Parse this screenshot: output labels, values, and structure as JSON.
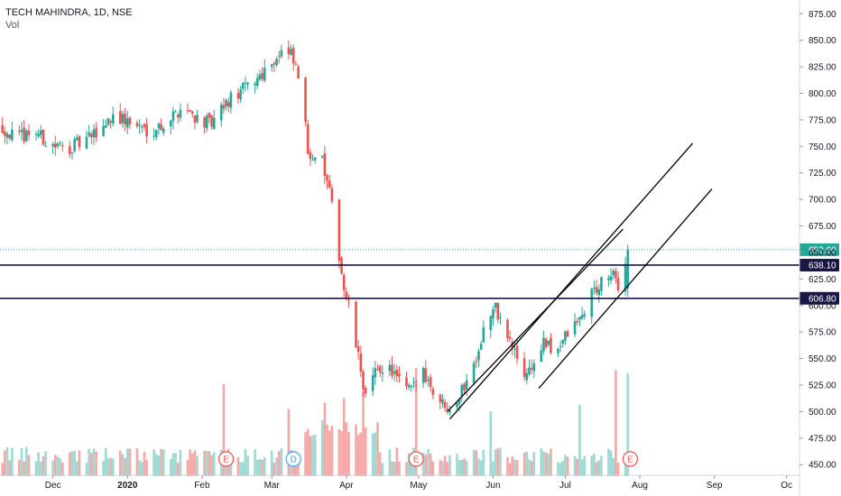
{
  "header": {
    "title": "TECH MAHINDRA, 1D, NSE",
    "volume_label": "Vol"
  },
  "colors": {
    "up": "#26a69a",
    "down": "#ef5350",
    "up_volume": "#9ed9d3",
    "down_volume": "#f5a8a6",
    "level_line": "#1a1646",
    "trend_line": "#000000",
    "last_price": "#26a69a"
  },
  "chart_data": {
    "type": "candlestick",
    "y_axis": {
      "ticks": [
        875,
        850,
        825,
        800,
        775,
        750,
        725,
        700,
        675,
        650,
        625,
        600,
        575,
        550,
        525,
        500,
        475,
        450
      ],
      "tick_labels": [
        "875.00",
        "850.00",
        "825.00",
        "800.00",
        "775.00",
        "750.00",
        "725.00",
        "700.00",
        "675.00",
        "650.00",
        "625.00",
        "600.00",
        "575.00",
        "550.00",
        "525.00",
        "500.00",
        "475.00",
        "450.00"
      ],
      "range": [
        440,
        888
      ]
    },
    "x_axis": {
      "labels": [
        "Dec",
        "2020",
        "Feb",
        "Mar",
        "Apr",
        "May",
        "Jun",
        "Jul",
        "Aug",
        "Sep",
        "Oc"
      ],
      "label_days": [
        0,
        31,
        62,
        91,
        122,
        152,
        183,
        213,
        244,
        275,
        305
      ],
      "range_days": [
        -22,
        310
      ]
    },
    "last_price": {
      "value": 652.6,
      "label": "652.60"
    },
    "levels": [
      {
        "value": 638.1,
        "label": "638.10"
      },
      {
        "value": 606.8,
        "label": "606.80"
      }
    ],
    "trend_lines": [
      {
        "from": {
          "day": 165,
          "price": 493
        },
        "to": {
          "day": 266,
          "price": 753
        }
      },
      {
        "from": {
          "day": 202,
          "price": 522
        },
        "to": {
          "day": 274,
          "price": 710
        }
      },
      {
        "from": {
          "day": 164,
          "price": 500
        },
        "to": {
          "day": 237,
          "price": 672
        }
      }
    ],
    "event_markers": [
      {
        "label": "E",
        "day": 72,
        "kind": "earnings"
      },
      {
        "label": "D",
        "day": 100,
        "kind": "dividend"
      },
      {
        "label": "E",
        "day": 151,
        "kind": "earnings"
      },
      {
        "label": "E",
        "day": 240,
        "kind": "earnings"
      }
    ],
    "anchors": [
      {
        "day": -22,
        "price": 770
      },
      {
        "day": -15,
        "price": 757
      },
      {
        "day": -8,
        "price": 766
      },
      {
        "day": -2,
        "price": 752
      },
      {
        "day": 5,
        "price": 748
      },
      {
        "day": 12,
        "price": 753
      },
      {
        "day": 18,
        "price": 762
      },
      {
        "day": 25,
        "price": 780
      },
      {
        "day": 32,
        "price": 772
      },
      {
        "day": 40,
        "price": 765
      },
      {
        "day": 47,
        "price": 772
      },
      {
        "day": 54,
        "price": 788
      },
      {
        "day": 61,
        "price": 775
      },
      {
        "day": 66,
        "price": 770
      },
      {
        "day": 72,
        "price": 790
      },
      {
        "day": 78,
        "price": 802
      },
      {
        "day": 84,
        "price": 812
      },
      {
        "day": 90,
        "price": 828
      },
      {
        "day": 95,
        "price": 838
      },
      {
        "day": 99,
        "price": 835
      },
      {
        "day": 103,
        "price": 810
      },
      {
        "day": 106,
        "price": 745
      },
      {
        "day": 109,
        "price": 742
      },
      {
        "day": 112,
        "price": 735
      },
      {
        "day": 115,
        "price": 705
      },
      {
        "day": 118,
        "price": 665
      },
      {
        "day": 121,
        "price": 615
      },
      {
        "day": 124,
        "price": 590
      },
      {
        "day": 127,
        "price": 550
      },
      {
        "day": 130,
        "price": 515
      },
      {
        "day": 134,
        "price": 535
      },
      {
        "day": 138,
        "price": 545
      },
      {
        "day": 142,
        "price": 535
      },
      {
        "day": 146,
        "price": 520
      },
      {
        "day": 150,
        "price": 522
      },
      {
        "day": 154,
        "price": 540
      },
      {
        "day": 158,
        "price": 520
      },
      {
        "day": 162,
        "price": 508
      },
      {
        "day": 166,
        "price": 505
      },
      {
        "day": 170,
        "price": 520
      },
      {
        "day": 175,
        "price": 545
      },
      {
        "day": 180,
        "price": 585
      },
      {
        "day": 184,
        "price": 597
      },
      {
        "day": 188,
        "price": 575
      },
      {
        "day": 192,
        "price": 555
      },
      {
        "day": 196,
        "price": 535
      },
      {
        "day": 200,
        "price": 545
      },
      {
        "day": 204,
        "price": 565
      },
      {
        "day": 208,
        "price": 555
      },
      {
        "day": 212,
        "price": 568
      },
      {
        "day": 216,
        "price": 578
      },
      {
        "day": 220,
        "price": 590
      },
      {
        "day": 224,
        "price": 612
      },
      {
        "day": 228,
        "price": 620
      },
      {
        "day": 232,
        "price": 630
      },
      {
        "day": 236,
        "price": 615
      },
      {
        "day": 239,
        "price": 653
      }
    ],
    "volume_spikes": [
      {
        "day": 71,
        "ratio": 0.85
      },
      {
        "day": 98,
        "ratio": 0.62
      },
      {
        "day": 113,
        "ratio": 0.68
      },
      {
        "day": 121,
        "ratio": 0.72
      },
      {
        "day": 129,
        "ratio": 0.78
      },
      {
        "day": 151,
        "ratio": 1.0
      },
      {
        "day": 182,
        "ratio": 0.6
      },
      {
        "day": 219,
        "ratio": 0.66
      },
      {
        "day": 230,
        "ratio": 0.92
      },
      {
        "day": 234,
        "ratio": 0.98
      },
      {
        "day": 239,
        "ratio": 0.95
      }
    ]
  }
}
